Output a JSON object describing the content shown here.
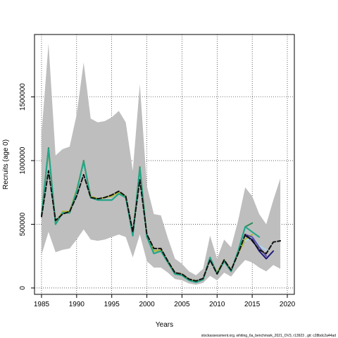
{
  "chart_data": {
    "type": "line",
    "title": "",
    "xlabel": "Years",
    "ylabel": "Recruits (age 0)",
    "xlim": [
      1984,
      2021
    ],
    "ylim": [
      -50000,
      1990000
    ],
    "x_ticks": [
      1985,
      1990,
      1995,
      2000,
      2005,
      2010,
      2015,
      2020
    ],
    "y_ticks": [
      0,
      500000,
      1000000,
      1500000
    ],
    "grid": "dotted",
    "confidence_band": {
      "color": "#bebebe",
      "x": [
        1985,
        1986,
        1987,
        1988,
        1989,
        1990,
        1991,
        1992,
        1993,
        1994,
        1995,
        1996,
        1997,
        1998,
        1999,
        2000,
        2001,
        2002,
        2003,
        2004,
        2005,
        2006,
        2007,
        2008,
        2009,
        2010,
        2011,
        2012,
        2013,
        2014,
        2015,
        2016,
        2017,
        2018,
        2019
      ],
      "lower": [
        260000,
        440000,
        280000,
        300000,
        310000,
        380000,
        460000,
        380000,
        370000,
        380000,
        400000,
        420000,
        400000,
        240000,
        420000,
        210000,
        160000,
        160000,
        120000,
        70000,
        60000,
        35000,
        25000,
        40000,
        95000,
        60000,
        120000,
        90000,
        160000,
        220000,
        200000,
        160000,
        130000,
        180000,
        150000
      ],
      "upper": [
        1210000,
        1920000,
        1040000,
        1090000,
        1110000,
        1360000,
        1770000,
        1330000,
        1300000,
        1310000,
        1340000,
        1390000,
        1300000,
        920000,
        1600000,
        800000,
        580000,
        570000,
        390000,
        230000,
        190000,
        130000,
        100000,
        150000,
        410000,
        230000,
        380000,
        320000,
        530000,
        790000,
        720000,
        580000,
        500000,
        690000,
        860000
      ]
    },
    "series": [
      {
        "color": "#2e8b57",
        "x": [
          1985,
          1986,
          1987,
          1988,
          1989,
          1990,
          1991,
          1992,
          1993,
          1994,
          1995,
          1996,
          1997,
          1998,
          1999,
          2000,
          2001,
          2002,
          2003,
          2004,
          2005,
          2006,
          2007,
          2008,
          2009,
          2010,
          2011,
          2012,
          2013,
          2014,
          2015
        ],
        "values": [
          570000,
          1100000,
          500000,
          590000,
          590000,
          760000,
          1000000,
          710000,
          690000,
          690000,
          690000,
          740000,
          710000,
          410000,
          950000,
          400000,
          270000,
          290000,
          200000,
          110000,
          100000,
          60000,
          45000,
          65000,
          240000,
          110000,
          210000,
          130000,
          290000,
          480000,
          510000
        ]
      },
      {
        "color": "#adb530",
        "x": [
          1985,
          1986,
          1987,
          1988,
          1989,
          1990,
          1991,
          1992,
          1993,
          1994,
          1995,
          1996,
          1997,
          1998,
          1999,
          2000,
          2001,
          2002,
          2003,
          2004,
          2005,
          2006,
          2007,
          2008,
          2009,
          2010,
          2011,
          2012,
          2013,
          2014,
          2015
        ],
        "values": [
          580000,
          1080000,
          510000,
          600000,
          600000,
          770000,
          990000,
          720000,
          700000,
          710000,
          720000,
          750000,
          720000,
          420000,
          940000,
          410000,
          290000,
          300000,
          210000,
          120000,
          110000,
          70000,
          50000,
          70000,
          230000,
          120000,
          220000,
          140000,
          270000,
          380000,
          420000
        ]
      },
      {
        "color": "#20a68c",
        "x": [
          1985,
          1986,
          1987,
          1988,
          1989,
          1990,
          1991,
          1992,
          1993,
          1994,
          1995,
          1996,
          1997,
          1998,
          1999,
          2000,
          2001,
          2002,
          2003,
          2004,
          2005,
          2006,
          2007,
          2008,
          2009,
          2010,
          2011,
          2012,
          2013,
          2014,
          2015,
          2016
        ],
        "values": [
          570000,
          1090000,
          500000,
          590000,
          590000,
          760000,
          990000,
          710000,
          690000,
          690000,
          690000,
          740000,
          710000,
          410000,
          940000,
          400000,
          270000,
          290000,
          200000,
          110000,
          100000,
          60000,
          45000,
          65000,
          240000,
          110000,
          210000,
          130000,
          290000,
          480000,
          440000,
          400000
        ]
      },
      {
        "color": "#a8d8ec",
        "x": [
          2014,
          2015,
          2016,
          2017
        ],
        "values": [
          370000,
          400000,
          330000,
          300000
        ]
      },
      {
        "color": "#5a4fa8",
        "x": [
          2014,
          2015,
          2016,
          2017
        ],
        "values": [
          420000,
          400000,
          320000,
          250000
        ]
      },
      {
        "color": "#1e1a78",
        "x": [
          2014,
          2015,
          2016,
          2017,
          2018
        ],
        "values": [
          410000,
          380000,
          290000,
          230000,
          290000
        ]
      },
      {
        "color": "#111111",
        "dashed": true,
        "x": [
          1985,
          1986,
          1987,
          1988,
          1989,
          1990,
          1991,
          1992,
          1993,
          1994,
          1995,
          1996,
          1997,
          1998,
          1999,
          2000,
          2001,
          2002,
          2003,
          2004,
          2005,
          2006,
          2007,
          2008,
          2009,
          2010,
          2011,
          2012,
          2013,
          2014,
          2015,
          2016,
          2017,
          2018,
          2019
        ],
        "values": [
          560000,
          920000,
          530000,
          580000,
          600000,
          720000,
          890000,
          710000,
          700000,
          710000,
          730000,
          760000,
          720000,
          440000,
          850000,
          420000,
          310000,
          310000,
          210000,
          120000,
          110000,
          70000,
          55000,
          75000,
          220000,
          110000,
          220000,
          140000,
          270000,
          420000,
          370000,
          300000,
          270000,
          360000,
          370000
        ]
      }
    ],
    "footnote": "stockassessment.org, whiting_6a_benchmark_2021_OV3, r13923 , git: c28bdc2a44ad"
  }
}
